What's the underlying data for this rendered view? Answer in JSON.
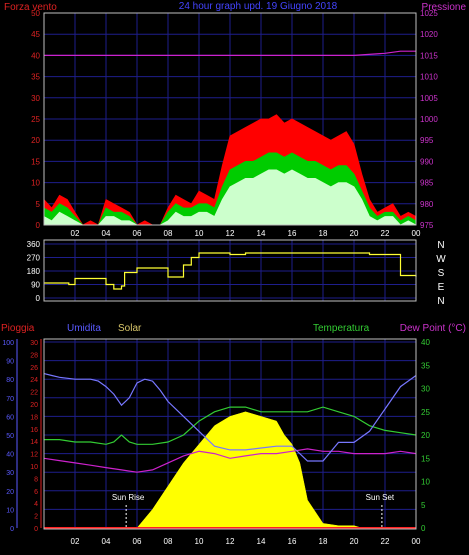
{
  "colors": {
    "background": "#000000",
    "frame": "#c0c0c0",
    "grid": "#1e1e8c",
    "wind_gust": "#ff0000",
    "wind_avg": "#00cc00",
    "wind_min": "#ccffcc",
    "pressure": "#cc22cc",
    "direction": "#ffff33",
    "rain": "#ff2222",
    "humidity": "#7777ff",
    "solar": "#ffff00",
    "temperature": "#33cc33",
    "dew_point": "#cc22cc",
    "axis_red": "#dd2222",
    "axis_magenta": "#cc33cc",
    "axis_blue": "#5a5aff",
    "axis_green": "#33cc33",
    "axis_white": "#ffffff"
  },
  "header": {
    "title": "24 hour graph upd. 19 Giugno 2018",
    "wind_label": "Forza vento",
    "pressure_label": "Pressione"
  },
  "labels": {
    "rain": "Pioggia",
    "humidity": "Umidita",
    "solar": "Solar",
    "temperature": "Temperatura",
    "dew_point": "Dew Point (°C)",
    "sunrise": "Sun Rise",
    "sunset": "Sun Set"
  },
  "chart_data": [
    {
      "type": "area",
      "title": "24 hour graph upd. 19 Giugno 2018",
      "x_hours": [
        0,
        24
      ],
      "x_ticks": [
        "02",
        "04",
        "06",
        "08",
        "10",
        "12",
        "14",
        "16",
        "18",
        "20",
        "22",
        "00"
      ],
      "left_axis": {
        "label": "Forza vento",
        "ticks": [
          "0",
          "5",
          "10",
          "15",
          "20",
          "25",
          "30",
          "35",
          "40",
          "45",
          "50"
        ],
        "ylim": [
          0,
          50
        ]
      },
      "right_axis": {
        "label": "Pressione",
        "ticks": [
          "975",
          "980",
          "985",
          "990",
          "995",
          "1000",
          "1005",
          "1010",
          "1015",
          "1020",
          "1025"
        ],
        "ylim": [
          975,
          1025
        ]
      },
      "series": [
        {
          "name": "gust",
          "x": [
            0,
            0.5,
            1,
            1.5,
            2,
            2.5,
            3,
            3.5,
            4,
            4.5,
            5,
            5.5,
            6,
            6.5,
            7,
            7.5,
            8,
            8.5,
            9,
            9.5,
            10,
            10.5,
            11,
            11.5,
            12,
            12.5,
            13,
            13.5,
            14,
            14.5,
            15,
            15.5,
            16,
            16.5,
            17,
            17.5,
            18,
            18.5,
            19,
            19.5,
            20,
            20.5,
            21,
            21.5,
            22,
            22.5,
            23,
            23.5,
            24
          ],
          "values": [
            6,
            4,
            7,
            6,
            3,
            0,
            1,
            0,
            6,
            5,
            4,
            3,
            0,
            1,
            0,
            0,
            4,
            7,
            6,
            5,
            8,
            7,
            6,
            14,
            21,
            22,
            23,
            24,
            25,
            25,
            26,
            24,
            25,
            24,
            23,
            22,
            21,
            20,
            21,
            22,
            19,
            12,
            6,
            3,
            4,
            5,
            2,
            3,
            2
          ]
        },
        {
          "name": "average",
          "x": [
            0,
            0.5,
            1,
            1.5,
            2,
            2.5,
            3,
            3.5,
            4,
            4.5,
            5,
            5.5,
            6,
            6.5,
            7,
            7.5,
            8,
            8.5,
            9,
            9.5,
            10,
            10.5,
            11,
            11.5,
            12,
            12.5,
            13,
            13.5,
            14,
            14.5,
            15,
            15.5,
            16,
            16.5,
            17,
            17.5,
            18,
            18.5,
            19,
            19.5,
            20,
            20.5,
            21,
            21.5,
            22,
            22.5,
            23,
            23.5,
            24
          ],
          "values": [
            4,
            3,
            5,
            4,
            2,
            0,
            0,
            0,
            4,
            3,
            3,
            2,
            0,
            0,
            0,
            0,
            3,
            5,
            4,
            4,
            5,
            5,
            4,
            9,
            13,
            14,
            15,
            15,
            16,
            17,
            17,
            16,
            17,
            16,
            15,
            15,
            14,
            13,
            14,
            14,
            12,
            8,
            4,
            2,
            3,
            3,
            1,
            2,
            1
          ]
        },
        {
          "name": "minimum",
          "x": [
            0,
            0.5,
            1,
            1.5,
            2,
            2.5,
            3,
            3.5,
            4,
            4.5,
            5,
            5.5,
            6,
            6.5,
            7,
            7.5,
            8,
            8.5,
            9,
            9.5,
            10,
            10.5,
            11,
            11.5,
            12,
            12.5,
            13,
            13.5,
            14,
            14.5,
            15,
            15.5,
            16,
            16.5,
            17,
            17.5,
            18,
            18.5,
            19,
            19.5,
            20,
            20.5,
            21,
            21.5,
            22,
            22.5,
            23,
            23.5,
            24
          ],
          "values": [
            2,
            1,
            3,
            2,
            1,
            0,
            0,
            0,
            2,
            2,
            1,
            1,
            0,
            0,
            0,
            0,
            1,
            3,
            2,
            2,
            3,
            3,
            2,
            6,
            9,
            10,
            11,
            11,
            12,
            13,
            13,
            12,
            13,
            12,
            11,
            11,
            10,
            9,
            10,
            10,
            9,
            6,
            2,
            1,
            2,
            2,
            0,
            1,
            0
          ]
        },
        {
          "name": "pressure",
          "axis": "right",
          "x": [
            0,
            2,
            4,
            6,
            8,
            10,
            12,
            14,
            16,
            18,
            20,
            22,
            23,
            24
          ],
          "values": [
            1015,
            1015,
            1015,
            1015,
            1015,
            1015,
            1015,
            1015,
            1015,
            1015,
            1015,
            1015.5,
            1016,
            1016
          ]
        }
      ]
    },
    {
      "type": "line",
      "x_hours": [
        0,
        24
      ],
      "y_ticks": [
        "0",
        "90",
        "180",
        "270",
        "360"
      ],
      "ylim": [
        0,
        360
      ],
      "right_labels": [
        "N",
        "W",
        "S",
        "E",
        "N"
      ],
      "series": [
        {
          "name": "wind direction",
          "x": [
            0,
            1,
            1.6,
            2,
            3.5,
            4,
            4.5,
            5,
            5.2,
            5.5,
            6,
            7,
            8,
            8.5,
            9,
            9.5,
            10,
            11,
            12,
            13,
            14,
            16,
            18,
            20,
            21,
            22,
            23,
            24
          ],
          "values": [
            100,
            100,
            90,
            130,
            130,
            90,
            60,
            80,
            170,
            170,
            200,
            200,
            140,
            140,
            220,
            270,
            300,
            300,
            290,
            300,
            300,
            300,
            300,
            300,
            290,
            290,
            150,
            140
          ]
        }
      ]
    },
    {
      "type": "line",
      "x_hours": [
        0,
        24
      ],
      "x_ticks": [
        "02",
        "04",
        "06",
        "08",
        "10",
        "12",
        "14",
        "16",
        "18",
        "20",
        "22",
        "00"
      ],
      "axes": {
        "humidity": {
          "label": "Umidita",
          "ticks": [
            "0",
            "10",
            "20",
            "30",
            "40",
            "50",
            "60",
            "70",
            "80",
            "90",
            "100"
          ],
          "ylim": [
            0,
            100
          ]
        },
        "rain": {
          "label": "Pioggia",
          "ticks": [
            "0",
            "2",
            "4",
            "6",
            "8",
            "10",
            "12",
            "14",
            "16",
            "18",
            "20",
            "22",
            "24",
            "26",
            "28",
            "30"
          ],
          "ylim": [
            0,
            30
          ]
        },
        "temperature": {
          "label": "Temperatura",
          "ticks": [
            "0",
            "5",
            "10",
            "15",
            "20",
            "25",
            "30",
            "35",
            "40"
          ],
          "ylim": [
            0,
            40
          ]
        }
      },
      "series": [
        {
          "name": "Umidita",
          "axis": "humidity",
          "x": [
            0,
            0.5,
            1,
            2,
            3,
            3.5,
            4,
            4.5,
            5,
            5.5,
            6,
            6.5,
            7,
            7.5,
            8,
            9,
            10,
            11,
            12,
            13,
            14,
            15,
            16,
            17,
            18,
            19,
            20,
            21,
            22,
            23,
            24
          ],
          "values": [
            83,
            82,
            81,
            80,
            80,
            79,
            76,
            72,
            66,
            70,
            78,
            80,
            79,
            74,
            68,
            60,
            52,
            44,
            42,
            42,
            43,
            44,
            44,
            36,
            36,
            46,
            46,
            52,
            64,
            76,
            82
          ]
        },
        {
          "name": "Temperatura",
          "axis": "temperature",
          "x": [
            0,
            1,
            2,
            3,
            4,
            4.5,
            5,
            5.5,
            6,
            7,
            8,
            9,
            10,
            11,
            12,
            13,
            14,
            15,
            16,
            17,
            18,
            19,
            20,
            21,
            22,
            23,
            24
          ],
          "values": [
            19,
            19,
            18.5,
            18.5,
            18,
            18.5,
            20,
            18.5,
            18,
            18,
            18.5,
            20,
            23,
            25,
            26,
            26,
            25,
            25,
            25,
            25,
            26,
            25,
            24,
            22,
            21,
            20.5,
            20
          ]
        },
        {
          "name": "Dew Point",
          "axis": "temperature",
          "x": [
            0,
            1,
            2,
            3,
            4,
            5,
            6,
            7,
            8,
            9,
            10,
            11,
            12,
            13,
            14,
            15,
            16,
            17,
            18,
            19,
            20,
            21,
            22,
            23,
            24
          ],
          "values": [
            15,
            14.5,
            14,
            13.5,
            13,
            12.5,
            12,
            12.5,
            14,
            15.5,
            16.5,
            16,
            15,
            15.5,
            16,
            16,
            16.5,
            17,
            16.5,
            16.5,
            16,
            16,
            16,
            16.5,
            16
          ]
        },
        {
          "name": "Solar",
          "axis": "temperature",
          "x": [
            0,
            6,
            7,
            8,
            9,
            10,
            11,
            12,
            13,
            14,
            15,
            15.5,
            16,
            16.5,
            17,
            18,
            19,
            20,
            20.5,
            21,
            22,
            24
          ],
          "values": [
            0,
            0,
            4,
            9,
            14,
            18,
            22,
            24,
            25,
            24,
            23,
            20,
            18,
            14,
            6,
            1,
            0.5,
            0.5,
            0,
            0,
            0,
            0
          ]
        },
        {
          "name": "Pioggia",
          "axis": "rain",
          "x": [
            0,
            24
          ],
          "values": [
            0,
            0
          ]
        }
      ],
      "markers": {
        "sunrise_hour": 5.3,
        "sunset_hour": 21.8
      }
    }
  ]
}
